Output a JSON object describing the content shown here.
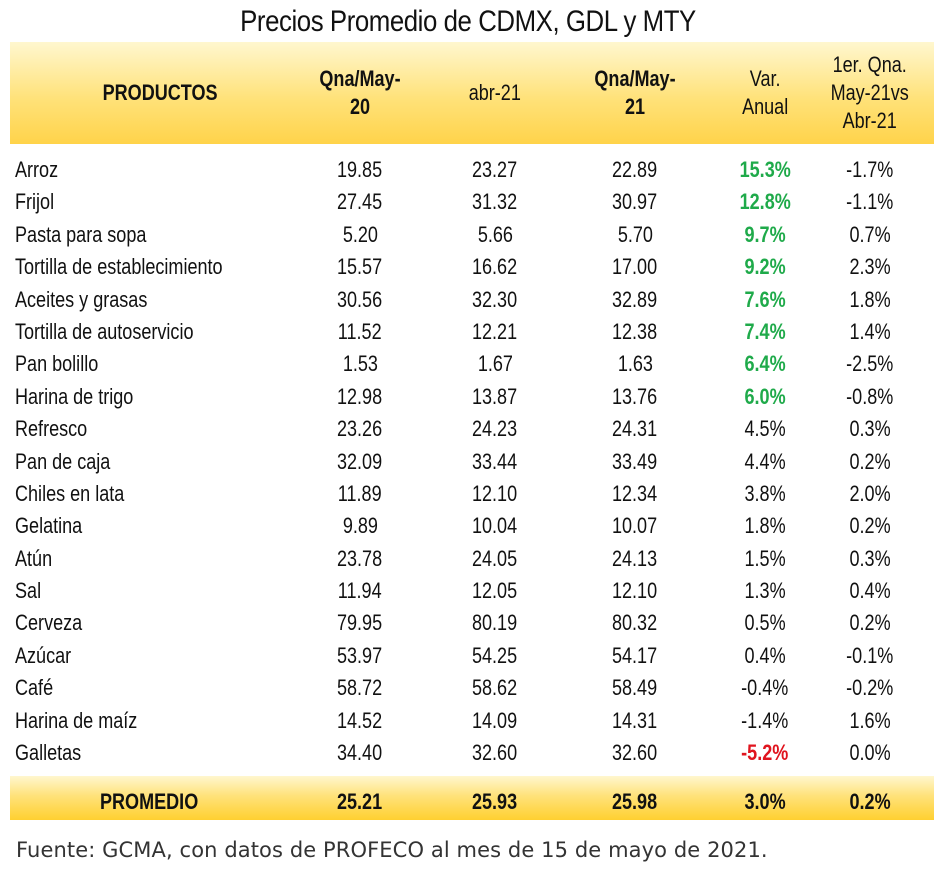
{
  "title": "Precios Promedio de CDMX, GDL y MTY",
  "header": {
    "productos": "PRODUCTOS",
    "col1": "Qna/May-20",
    "col2": "abr-21",
    "col3": "Qna/May-21",
    "col4": "Var.\nAnual",
    "col5": "1er. Qna.\nMay-21vs\nAbr-21"
  },
  "rows": [
    {
      "name": "Arroz",
      "v1": "19.85",
      "v2": "23.27",
      "v3": "22.89",
      "var": "15.3%",
      "var_style": "pos",
      "q": "-1.7%"
    },
    {
      "name": "Frijol",
      "v1": "27.45",
      "v2": "31.32",
      "v3": "30.97",
      "var": "12.8%",
      "var_style": "pos",
      "q": "-1.1%"
    },
    {
      "name": "Pasta para sopa",
      "v1": "5.20",
      "v2": "5.66",
      "v3": "5.70",
      "var": "9.7%",
      "var_style": "pos",
      "q": "0.7%"
    },
    {
      "name": "Tortilla de establecimiento",
      "v1": "15.57",
      "v2": "16.62",
      "v3": "17.00",
      "var": "9.2%",
      "var_style": "pos",
      "q": "2.3%"
    },
    {
      "name": "Aceites y grasas",
      "v1": "30.56",
      "v2": "32.30",
      "v3": "32.89",
      "var": "7.6%",
      "var_style": "pos",
      "q": "1.8%"
    },
    {
      "name": "Tortilla de autoservicio",
      "v1": "11.52",
      "v2": "12.21",
      "v3": "12.38",
      "var": "7.4%",
      "var_style": "pos",
      "q": "1.4%"
    },
    {
      "name": "Pan bolillo",
      "v1": "1.53",
      "v2": "1.67",
      "v3": "1.63",
      "var": "6.4%",
      "var_style": "pos",
      "q": "-2.5%"
    },
    {
      "name": "Harina de trigo",
      "v1": "12.98",
      "v2": "13.87",
      "v3": "13.76",
      "var": "6.0%",
      "var_style": "pos",
      "q": "-0.8%"
    },
    {
      "name": "Refresco",
      "v1": "23.26",
      "v2": "24.23",
      "v3": "24.31",
      "var": "4.5%",
      "var_style": "",
      "q": "0.3%"
    },
    {
      "name": "Pan de caja",
      "v1": "32.09",
      "v2": "33.44",
      "v3": "33.49",
      "var": "4.4%",
      "var_style": "",
      "q": "0.2%"
    },
    {
      "name": "Chiles en lata",
      "v1": "11.89",
      "v2": "12.10",
      "v3": "12.34",
      "var": "3.8%",
      "var_style": "",
      "q": "2.0%"
    },
    {
      "name": "Gelatina",
      "v1": "9.89",
      "v2": "10.04",
      "v3": "10.07",
      "var": "1.8%",
      "var_style": "",
      "q": "0.2%"
    },
    {
      "name": "Atún",
      "v1": "23.78",
      "v2": "24.05",
      "v3": "24.13",
      "var": "1.5%",
      "var_style": "",
      "q": "0.3%"
    },
    {
      "name": "Sal",
      "v1": "11.94",
      "v2": "12.05",
      "v3": "12.10",
      "var": "1.3%",
      "var_style": "",
      "q": "0.4%"
    },
    {
      "name": "Cerveza",
      "v1": "79.95",
      "v2": "80.19",
      "v3": "80.32",
      "var": "0.5%",
      "var_style": "",
      "q": "0.2%"
    },
    {
      "name": "Azúcar",
      "v1": "53.97",
      "v2": "54.25",
      "v3": "54.17",
      "var": "0.4%",
      "var_style": "",
      "q": "-0.1%"
    },
    {
      "name": "Café",
      "v1": "58.72",
      "v2": "58.62",
      "v3": "58.49",
      "var": "-0.4%",
      "var_style": "",
      "q": "-0.2%"
    },
    {
      "name": "Harina de maíz",
      "v1": "14.52",
      "v2": "14.09",
      "v3": "14.31",
      "var": "-1.4%",
      "var_style": "",
      "q": "1.6%"
    },
    {
      "name": "Galletas",
      "v1": "34.40",
      "v2": "32.60",
      "v3": "32.60",
      "var": "-5.2%",
      "var_style": "neg",
      "q": "0.0%"
    }
  ],
  "total": {
    "name": "PROMEDIO",
    "v1": "25.21",
    "v2": "25.93",
    "v3": "25.98",
    "var": "3.0%",
    "q": "0.2%"
  },
  "source": "Fuente: GCMA, con datos de PROFECO al mes de 15 de mayo de 2021.",
  "colors": {
    "positive": "#1faa4a",
    "negative": "#e0141e",
    "header_band": "#ffe27a"
  }
}
